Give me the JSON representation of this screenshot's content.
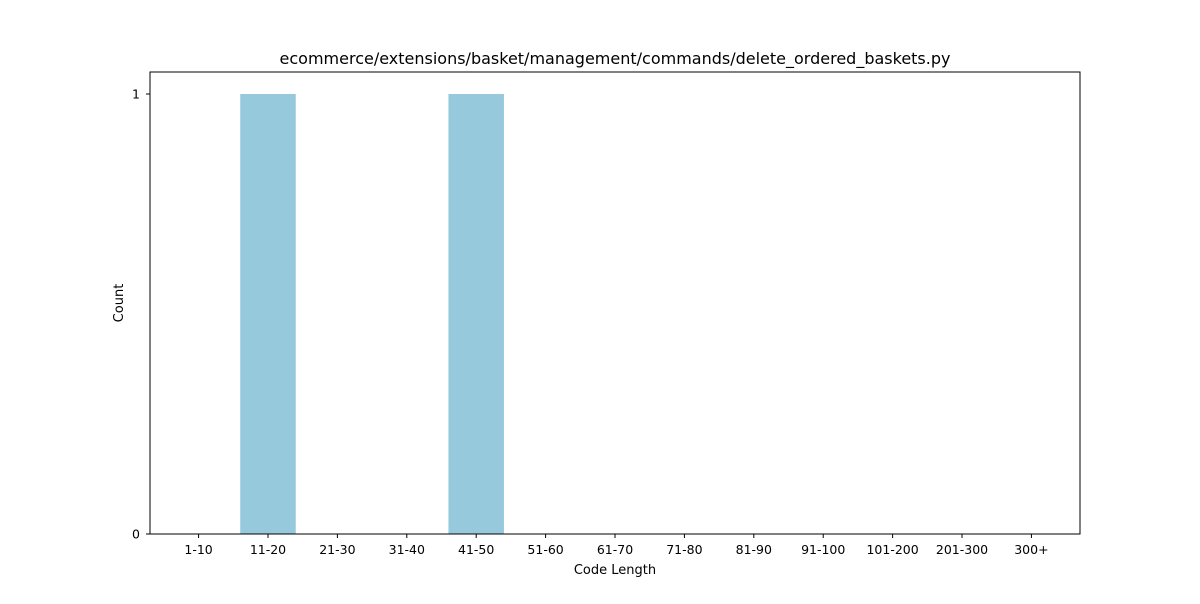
{
  "chart_data": {
    "type": "bar",
    "title": "ecommerce/extensions/basket/management/commands/delete_ordered_baskets.py",
    "xlabel": "Code Length",
    "ylabel": "Count",
    "categories": [
      "1-10",
      "11-20",
      "21-30",
      "31-40",
      "41-50",
      "51-60",
      "61-70",
      "71-80",
      "81-90",
      "91-100",
      "101-200",
      "201-300",
      "300+"
    ],
    "values": [
      0,
      1,
      0,
      0,
      1,
      0,
      0,
      0,
      0,
      0,
      0,
      0,
      0
    ],
    "ylim": [
      0,
      1.05
    ],
    "yticks": [
      0,
      1
    ],
    "bar_color": "#96c9dc",
    "grid": false,
    "legend": false
  }
}
